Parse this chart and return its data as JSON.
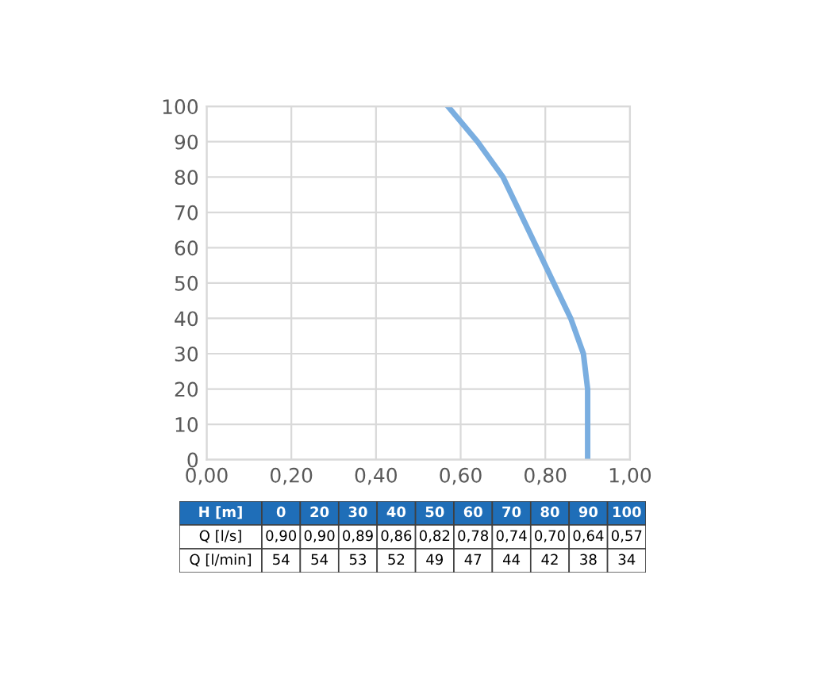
{
  "chart_data": {
    "type": "line",
    "x": [
      0.9,
      0.9,
      0.89,
      0.86,
      0.82,
      0.78,
      0.74,
      0.7,
      0.64,
      0.57
    ],
    "series": [
      {
        "color": "#7aaee0",
        "values": [
          0,
          20,
          30,
          40,
          50,
          60,
          70,
          80,
          90,
          100
        ]
      }
    ],
    "xlim": [
      0,
      1
    ],
    "xticks": [
      {
        "value": 0,
        "label": "0,00"
      },
      {
        "value": 0.2,
        "label": "0,20"
      },
      {
        "value": 0.4,
        "label": "0,40"
      },
      {
        "value": 0.6,
        "label": "0,60"
      },
      {
        "value": 0.8,
        "label": "0,80"
      },
      {
        "value": 1,
        "label": "1,00"
      }
    ],
    "ylim": [
      0,
      100
    ],
    "yticks": [
      0,
      10,
      20,
      30,
      40,
      50,
      60,
      70,
      80,
      90,
      100
    ],
    "grid": true,
    "marker": "none",
    "line_style": "solid",
    "annotations": [
      "H [m]",
      "0",
      "20",
      "30",
      "40",
      "50",
      "60",
      "70",
      "80",
      "90",
      "100",
      "Q [l/s]",
      "0,90",
      "0,90",
      "0,89",
      "0,86",
      "0,82",
      "0,78",
      "0,74",
      "0,70",
      "0,64",
      "0,57",
      "Q [l/min]",
      "54",
      "54",
      "53",
      "52",
      "49",
      "47",
      "44",
      "42",
      "38",
      "34"
    ]
  }
}
